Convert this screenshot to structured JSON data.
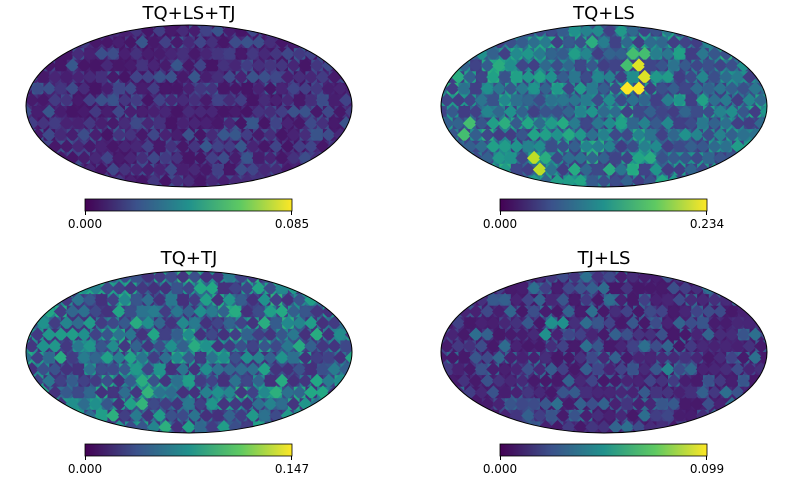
{
  "chart_data": [
    {
      "type": "heatmap",
      "projection": "mollweide",
      "title": "TQ+LS+TJ",
      "colormap": "viridis",
      "vmin": 0.0,
      "vmax": 0.085,
      "colorbar": {
        "min_label": "0.000",
        "max_label": "0.085",
        "placement": "bottom"
      },
      "character": "mostly low values, uniformly dark purple"
    },
    {
      "type": "heatmap",
      "projection": "mollweide",
      "title": "TQ+LS",
      "colormap": "viridis",
      "vmin": 0.0,
      "vmax": 0.234,
      "colorbar": {
        "min_label": "0.000",
        "max_label": "0.234",
        "placement": "bottom"
      },
      "character": "mixed blue/teal with a few bright yellow-green hot spots"
    },
    {
      "type": "heatmap",
      "projection": "mollweide",
      "title": "TQ+TJ",
      "colormap": "viridis",
      "vmin": 0.0,
      "vmax": 0.147,
      "colorbar": {
        "min_label": "0.000",
        "max_label": "0.147",
        "placement": "bottom"
      },
      "character": "blue with scattered teal patches"
    },
    {
      "type": "heatmap",
      "projection": "mollweide",
      "title": "TJ+LS",
      "colormap": "viridis",
      "vmin": 0.0,
      "vmax": 0.099,
      "colorbar": {
        "min_label": "0.000",
        "max_label": "0.099",
        "placement": "bottom"
      },
      "character": "mostly dark purple with sparse blue/teal pixels"
    }
  ]
}
